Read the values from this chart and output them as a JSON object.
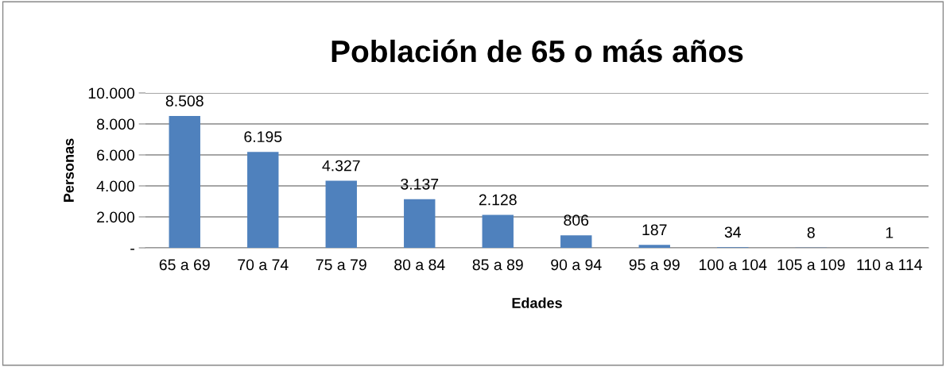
{
  "chart_data": {
    "type": "bar",
    "title": "Población de 65 o más años",
    "xlabel": "Edades",
    "ylabel": "Personas",
    "categories": [
      "65 a 69",
      "70 a 74",
      "75 a 79",
      "80 a 84",
      "85 a 89",
      "90 a 94",
      "95 a 99",
      "100 a 104",
      "105 a 109",
      "110 a 114"
    ],
    "values": [
      8508,
      6195,
      4327,
      3137,
      2128,
      806,
      187,
      34,
      8,
      1
    ],
    "value_labels": [
      "8.508",
      "6.195",
      "4.327",
      "3.137",
      "2.128",
      "806",
      "187",
      "34",
      "8",
      "1"
    ],
    "color": "#4f81bd",
    "ylim": [
      0,
      10000
    ],
    "yticks": [
      {
        "value": 0,
        "label": "-"
      },
      {
        "value": 2000,
        "label": "2.000"
      },
      {
        "value": 4000,
        "label": "4.000"
      },
      {
        "value": 6000,
        "label": "6.000"
      },
      {
        "value": 8000,
        "label": "8.000"
      },
      {
        "value": 10000,
        "label": "10.000"
      }
    ],
    "grid": "y",
    "legend": false
  }
}
